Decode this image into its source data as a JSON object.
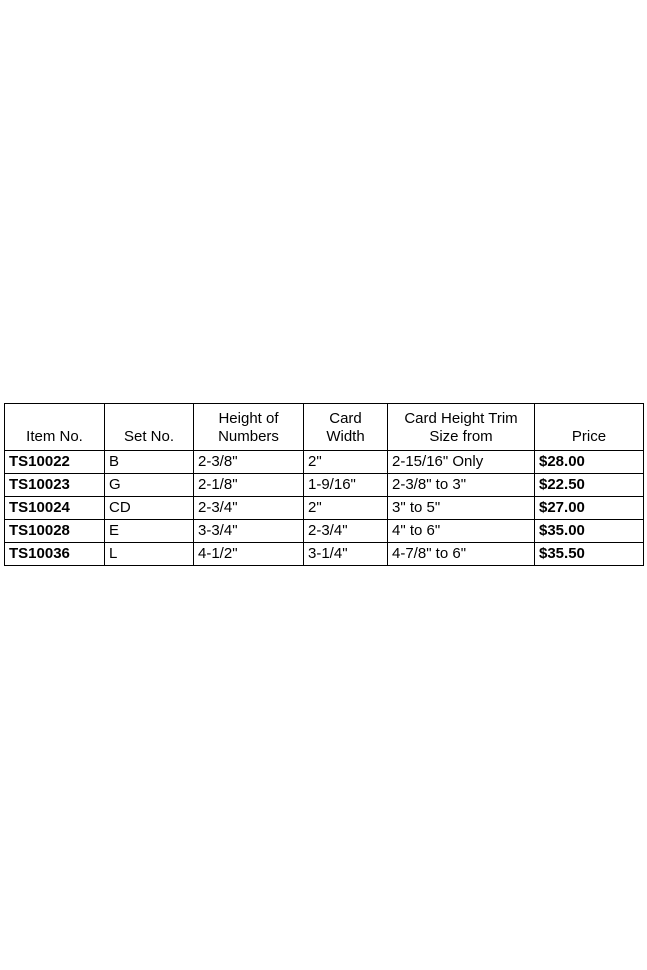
{
  "page": {
    "background": "#ffffff",
    "text_color": "#000000",
    "border_color": "#000000"
  },
  "table": {
    "headers": {
      "item_no": "Item No.",
      "set_no": "Set No.",
      "height_of_numbers": "Height of\nNumbers",
      "card_width": "Card\nWidth",
      "card_height_trim": "Card Height Trim\nSize from",
      "price": "Price"
    },
    "rows": [
      {
        "item_no": "TS10022",
        "set_no": "B",
        "height_of_numbers": "2-3/8\"",
        "card_width": "2\"",
        "card_height_trim": "2-15/16\" Only",
        "price": "$28.00"
      },
      {
        "item_no": "TS10023",
        "set_no": "G",
        "height_of_numbers": "2-1/8\"",
        "card_width": "1-9/16\"",
        "card_height_trim": "2-3/8\" to 3\"",
        "price": "$22.50"
      },
      {
        "item_no": "TS10024",
        "set_no": "CD",
        "height_of_numbers": "2-3/4\"",
        "card_width": "2\"",
        "card_height_trim": "3\" to 5\"",
        "price": "$27.00"
      },
      {
        "item_no": "TS10028",
        "set_no": "E",
        "height_of_numbers": "3-3/4\"",
        "card_width": "2-3/4\"",
        "card_height_trim": "4\" to 6\"",
        "price": "$35.00"
      },
      {
        "item_no": "TS10036",
        "set_no": "L",
        "height_of_numbers": "4-1/2\"",
        "card_width": "3-1/4\"",
        "card_height_trim": "4-7/8\" to 6\"",
        "price": "$35.50"
      }
    ]
  }
}
